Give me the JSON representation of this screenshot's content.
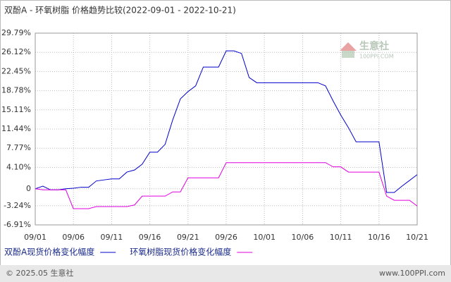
{
  "chart_data": {
    "type": "line",
    "title": "双酚A - 环氧树脂 价格趋势比较(2022-09-01 - 2022-10-21)",
    "categories": [
      "09/01",
      null,
      null,
      null,
      null,
      "09/06",
      null,
      null,
      null,
      null,
      "09/11",
      null,
      null,
      null,
      null,
      "09/16",
      null,
      null,
      null,
      null,
      "09/21",
      null,
      null,
      null,
      null,
      "09/26",
      null,
      null,
      null,
      null,
      "10/01",
      null,
      null,
      null,
      null,
      "10/06",
      null,
      null,
      null,
      null,
      "10/11",
      null,
      null,
      null,
      null,
      "10/16",
      null,
      null,
      null,
      null,
      "10/21"
    ],
    "series": [
      {
        "name": "双酚A现货价格变化幅度",
        "color": "#0000cc",
        "values": [
          0.0,
          0.5,
          -0.2,
          -0.2,
          0.0,
          0.1,
          0.3,
          0.3,
          1.5,
          1.7,
          1.9,
          1.9,
          3.2,
          3.6,
          4.7,
          7.0,
          7.0,
          8.5,
          13.2,
          17.2,
          18.6,
          19.7,
          23.3,
          23.3,
          23.3,
          26.4,
          26.4,
          25.9,
          21.3,
          20.3,
          20.3,
          20.3,
          20.3,
          20.3,
          20.3,
          20.3,
          20.3,
          20.3,
          19.7,
          16.8,
          14.1,
          11.7,
          9.0,
          9.0,
          9.0,
          9.0,
          -0.7,
          -0.7,
          0.5,
          1.6,
          2.7
        ]
      },
      {
        "name": "环氧树脂现货价格变化幅度",
        "color": "#e000e0",
        "values": [
          0.0,
          -0.2,
          -0.2,
          -0.2,
          -0.2,
          -3.8,
          -3.8,
          -3.8,
          -3.4,
          -3.4,
          -3.4,
          -3.4,
          -3.4,
          -3.1,
          -1.4,
          -1.4,
          -1.4,
          -1.4,
          -0.6,
          -0.6,
          2.1,
          2.1,
          2.1,
          2.1,
          2.1,
          5.0,
          5.0,
          5.0,
          5.0,
          5.0,
          5.0,
          5.0,
          5.0,
          5.0,
          5.0,
          5.0,
          5.0,
          5.0,
          5.0,
          4.2,
          4.2,
          3.2,
          3.2,
          3.2,
          3.2,
          3.2,
          -1.4,
          -2.2,
          -2.2,
          -2.2,
          -3.3
        ]
      }
    ],
    "ylim": [
      -6.91,
      29.79
    ],
    "yticks": [
      {
        "value": 29.79,
        "label": "29.79%"
      },
      {
        "value": 26.12,
        "label": "26.12%"
      },
      {
        "value": 22.45,
        "label": "22.45%"
      },
      {
        "value": 18.78,
        "label": "18.78%"
      },
      {
        "value": 15.11,
        "label": "15.11%"
      },
      {
        "value": 11.44,
        "label": "11.44%"
      },
      {
        "value": 7.77,
        "label": "7.77%"
      },
      {
        "value": 4.1,
        "label": "4.10%"
      },
      0,
      {
        "value": -3.24,
        "label": "-3.24%"
      },
      {
        "value": -6.91,
        "label": "-6.91%"
      }
    ],
    "grid": true,
    "watermark": {
      "name": "生意社",
      "url": "100PPI.COM"
    },
    "footer": {
      "left": "© 2025.05 生意社",
      "right": "www.100PPI.com"
    }
  }
}
